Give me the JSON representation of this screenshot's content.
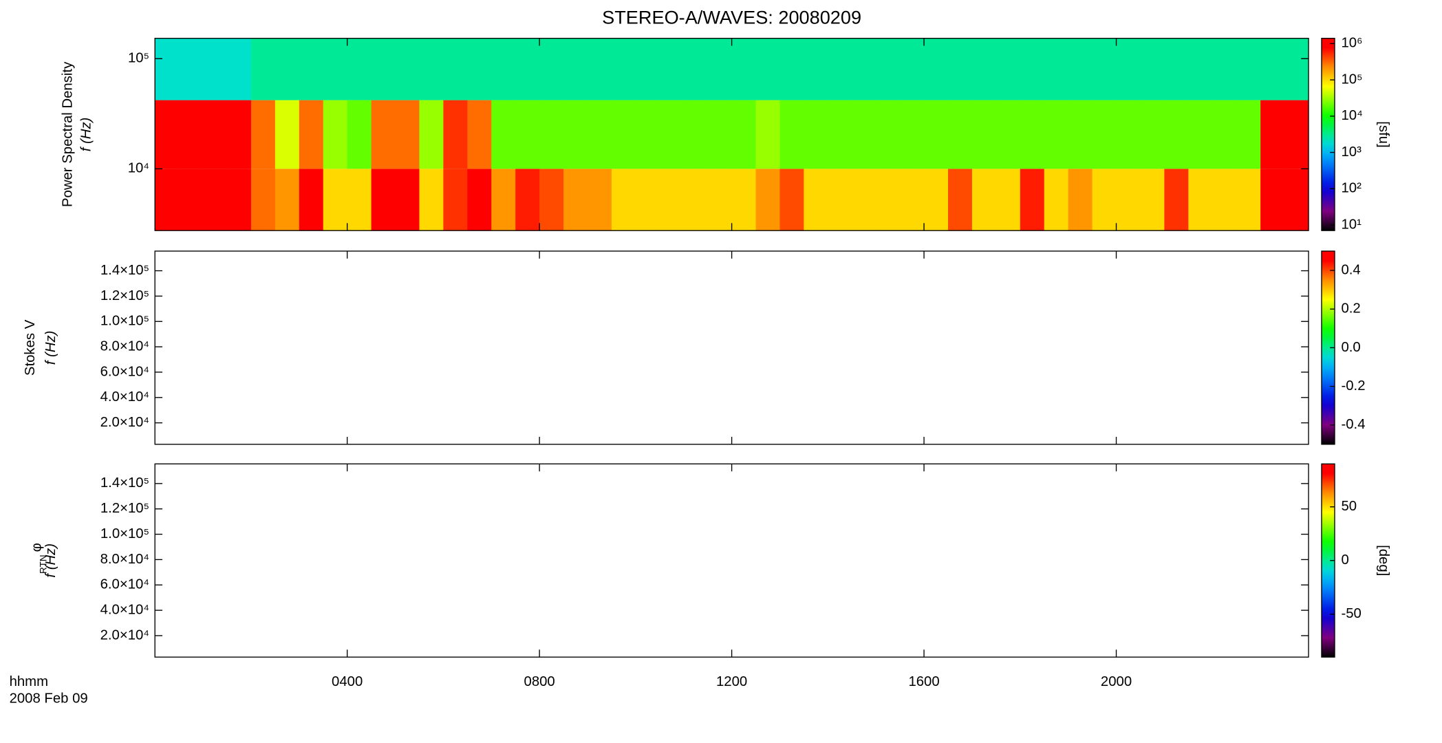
{
  "chart_data": [
    {
      "type": "heatmap",
      "title": "STEREO-A/WAVES: 20080209",
      "quantity": "Power Spectral Density",
      "ylabel": "f (Hz)",
      "colormap": "rainbow",
      "log_y": true,
      "log_color": true,
      "colorbar_label": "[sfu]",
      "x": [
        0,
        0.5,
        1,
        1.5,
        2,
        2.5,
        3,
        3.5,
        4,
        4.5,
        5,
        5.5,
        6,
        6.5,
        7,
        7.5,
        8,
        8.5,
        9,
        9.5,
        10,
        10.5,
        11,
        11.5,
        12,
        12.5,
        13,
        13.5,
        14,
        14.5,
        15,
        15.5,
        16,
        16.5,
        17,
        17.5,
        18,
        18.5,
        19,
        19.5,
        20,
        20.5,
        21,
        21.5,
        22,
        22.5,
        23,
        23.5,
        24
      ],
      "y": [
        2750,
        10000,
        42000,
        153000
      ],
      "z": [
        [
          1000000,
          1000000,
          1000000,
          1000000,
          300000,
          200000,
          1000000,
          100000,
          100000,
          1000000,
          1000000,
          100000,
          500000,
          1000000,
          200000,
          600000,
          400000,
          200000,
          200000,
          100000,
          100000,
          100000,
          100000,
          100000,
          100000,
          200000,
          400000,
          100000,
          100000,
          100000,
          100000,
          100000,
          100000,
          400000,
          100000,
          100000,
          600000,
          100000,
          200000,
          100000,
          100000,
          100000,
          500000,
          100000,
          100000,
          100000,
          1000000,
          1000000
        ],
        [
          1000000,
          1000000,
          1000000,
          1000000,
          300000,
          50000,
          300000,
          30000,
          20000,
          300000,
          300000,
          30000,
          500000,
          300000,
          20000,
          20000,
          20000,
          20000,
          20000,
          20000,
          20000,
          20000,
          20000,
          20000,
          20000,
          30000,
          20000,
          20000,
          20000,
          20000,
          20000,
          20000,
          20000,
          20000,
          20000,
          20000,
          20000,
          20000,
          20000,
          20000,
          20000,
          20000,
          20000,
          20000,
          20000,
          20000,
          1000000,
          1000000
        ],
        [
          2000,
          2000,
          2000,
          2000,
          3000,
          3000,
          3000,
          3000,
          3000,
          3000,
          3000,
          3000,
          3000,
          3000,
          3000,
          3000,
          3000,
          3000,
          3000,
          3000,
          3000,
          3000,
          3000,
          3000,
          3000,
          3000,
          3000,
          3000,
          3000,
          3000,
          3000,
          3000,
          3000,
          3000,
          3000,
          3000,
          3000,
          3000,
          3000,
          3000,
          3000,
          3000,
          3000,
          3000,
          3000,
          3000,
          3000,
          3000
        ]
      ],
      "xlim": [
        0,
        24
      ],
      "xticks": [
        4,
        8,
        12,
        16,
        20
      ],
      "ylim": [
        2750,
        153000
      ],
      "yticks": [
        {
          "value": 10000,
          "label": "10⁴"
        },
        {
          "value": 100000,
          "label": "10⁵"
        }
      ],
      "clim": [
        7,
        1400000
      ],
      "cticks": [
        {
          "value": 10,
          "label": "10¹"
        },
        {
          "value": 100,
          "label": "10²"
        },
        {
          "value": 1000,
          "label": "10³"
        },
        {
          "value": 10000,
          "label": "10⁴"
        },
        {
          "value": 100000,
          "label": "10⁵"
        },
        {
          "value": 1000000,
          "label": "10⁶"
        }
      ]
    },
    {
      "type": "heatmap",
      "quantity": "Stokes V",
      "ylabel": "f (Hz)",
      "colormap": "rainbow",
      "log_y": false,
      "log_color": false,
      "xlim": [
        0,
        24
      ],
      "xticks": [
        4,
        8,
        12,
        16,
        20
      ],
      "ylim": [
        3070,
        155500
      ],
      "yticks": [
        {
          "value": 20000,
          "label": "2.0×10⁴"
        },
        {
          "value": 40000,
          "label": "4.0×10⁴"
        },
        {
          "value": 60000,
          "label": "6.0×10⁴"
        },
        {
          "value": 80000,
          "label": "8.0×10⁴"
        },
        {
          "value": 100000,
          "label": "1.0×10⁵"
        },
        {
          "value": 120000,
          "label": "1.2×10⁵"
        },
        {
          "value": 140000,
          "label": "1.4×10⁵"
        }
      ],
      "clim": [
        -0.5,
        0.5
      ],
      "cticks": [
        -0.4,
        -0.2,
        {
          "value": 0,
          "label": "0.0"
        },
        0.2,
        0.4
      ]
    },
    {
      "type": "heatmap",
      "quantity": "φ",
      "quantity_subscript": "RTN",
      "ylabel": "f (Hz)",
      "colormap": "rainbow",
      "log_y": false,
      "log_color": false,
      "colorbar_label": "[deg]",
      "xlabel": "hhmm",
      "date": "2008 Feb 09",
      "xlim": [
        0,
        24
      ],
      "xticks": [
        {
          "value": 4,
          "label": "0400"
        },
        {
          "value": 8,
          "label": "0800"
        },
        {
          "value": 12,
          "label": "1200"
        },
        {
          "value": 16,
          "label": "1600"
        },
        {
          "value": 20,
          "label": "2000"
        }
      ],
      "ylim": [
        3070,
        155500
      ],
      "yticks": [
        {
          "value": 20000,
          "label": "2.0×10⁴"
        },
        {
          "value": 40000,
          "label": "4.0×10⁴"
        },
        {
          "value": 60000,
          "label": "6.0×10⁴"
        },
        {
          "value": 80000,
          "label": "8.0×10⁴"
        },
        {
          "value": 100000,
          "label": "1.0×10⁵"
        },
        {
          "value": 120000,
          "label": "1.2×10⁵"
        },
        {
          "value": 140000,
          "label": "1.4×10⁵"
        }
      ],
      "clim": [
        -90,
        90
      ],
      "cticks": [
        -50,
        0,
        50
      ]
    }
  ]
}
